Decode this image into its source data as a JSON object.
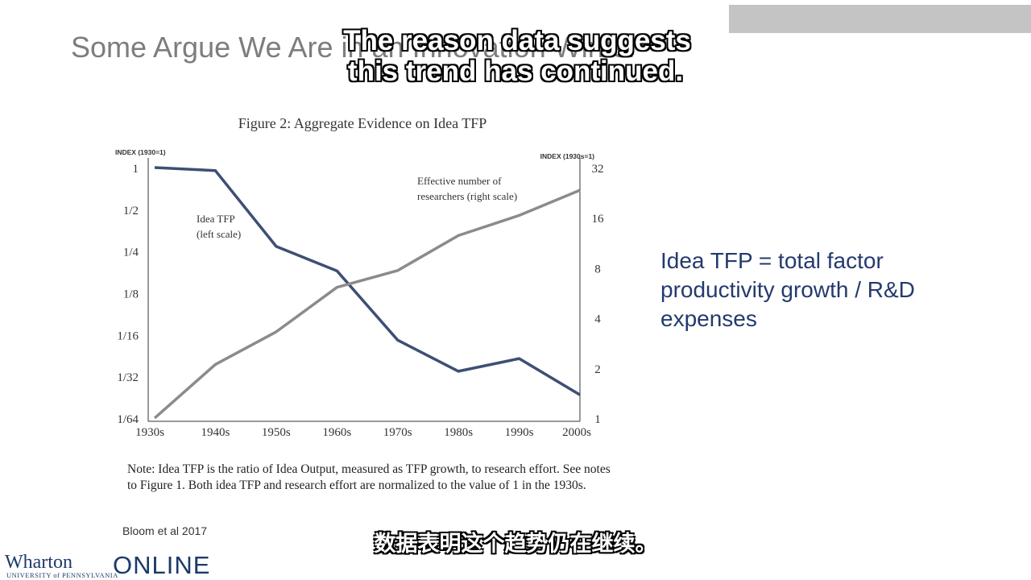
{
  "slide": {
    "title": "Some Argue We Are in an Innovation Winter",
    "definition": "Idea TFP = total factor productivity growth / R&D expenses",
    "note": "Note: Idea TFP is the ratio of Idea Output, measured as TFP growth, to research effort. See notes to Figure 1. Both idea TFP and research effort are normalized to the value of 1 in the 1930s.",
    "citation": "Bloom et al 2017"
  },
  "subtitles": {
    "english_line_1": "The reason data suggests",
    "english_line_2": "this trend has continued.",
    "chinese": "数据表明这个趋势仍在继续。"
  },
  "logo": {
    "brand": "Wharton",
    "university": "UNIVERSITY of PENNSYLVANIA",
    "online": "ONLINE"
  },
  "colors": {
    "idea_tfp_line": "#3e4f74",
    "researchers_line": "#8e8a8c",
    "definition_text": "#243a6e"
  },
  "chart_data": {
    "type": "line",
    "title": "Figure 2: Aggregate Evidence on Idea TFP",
    "left_axis_label": "INDEX (1930=1)",
    "right_axis_label": "INDEX (1930s=1)",
    "left_scale": "log2",
    "right_scale": "log2",
    "categories": [
      "1930s",
      "1940s",
      "1950s",
      "1960s",
      "1970s",
      "1980s",
      "1990s",
      "2000s"
    ],
    "left_ticks": [
      {
        "value": 1,
        "label": "1"
      },
      {
        "value": 0.5,
        "label": "1/2"
      },
      {
        "value": 0.25,
        "label": "1/4"
      },
      {
        "value": 0.125,
        "label": "1/8"
      },
      {
        "value": 0.0625,
        "label": "1/16"
      },
      {
        "value": 0.03125,
        "label": "1/32"
      },
      {
        "value": 0.015625,
        "label": "1/64"
      }
    ],
    "right_ticks": [
      {
        "value": 32,
        "label": "32"
      },
      {
        "value": 16,
        "label": "16"
      },
      {
        "value": 8,
        "label": "8"
      },
      {
        "value": 4,
        "label": "4"
      },
      {
        "value": 2,
        "label": "2"
      },
      {
        "value": 1,
        "label": "1"
      }
    ],
    "ylim_left": [
      0.015625,
      1
    ],
    "ylim_right": [
      1,
      32
    ],
    "series": [
      {
        "name": "Idea TFP (left scale)",
        "name_line_1": "Idea TFP",
        "name_line_2": "(left scale)",
        "axis": "left",
        "values": [
          1,
          0.95,
          0.27,
          0.18,
          0.057,
          0.034,
          0.042,
          0.023
        ]
      },
      {
        "name": "Effective number of researchers (right scale)",
        "name_line_1": "Effective number of",
        "name_line_2": "researchers (right scale)",
        "axis": "right",
        "values": [
          1,
          2.1,
          3.3,
          6.1,
          7.7,
          12.5,
          16.5,
          23.4
        ]
      }
    ],
    "grid": false
  }
}
